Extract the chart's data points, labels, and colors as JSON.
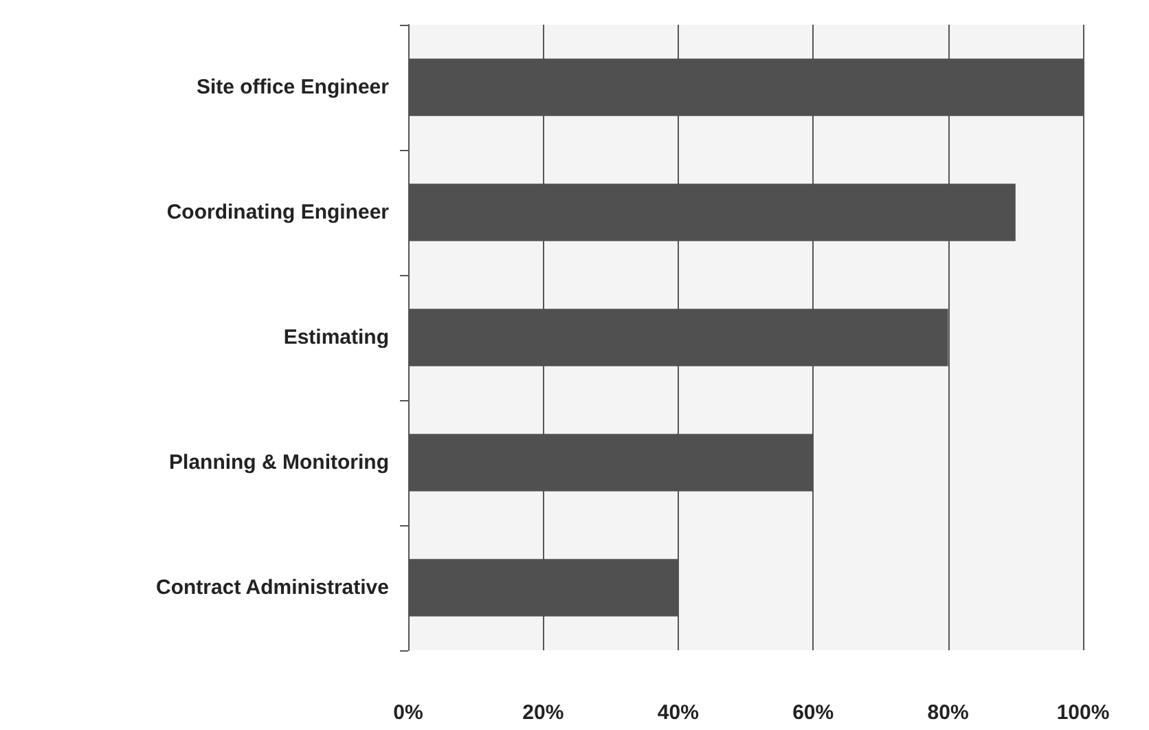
{
  "chart_data": {
    "type": "bar",
    "orientation": "horizontal",
    "categories": [
      "Site office Engineer",
      "Coordinating Engineer",
      "Estimating",
      "Planning & Monitoring",
      "Contract Administrative"
    ],
    "values": [
      100,
      90,
      80,
      60,
      40
    ],
    "color": "#505050",
    "xlim": [
      0,
      100
    ],
    "xticks": [
      {
        "value": 0,
        "label": "0%"
      },
      {
        "value": 20,
        "label": "20%"
      },
      {
        "value": 40,
        "label": "40%"
      },
      {
        "value": 60,
        "label": "60%"
      },
      {
        "value": 80,
        "label": "80%"
      },
      {
        "value": 100,
        "label": "100%"
      }
    ],
    "grid": "x"
  }
}
